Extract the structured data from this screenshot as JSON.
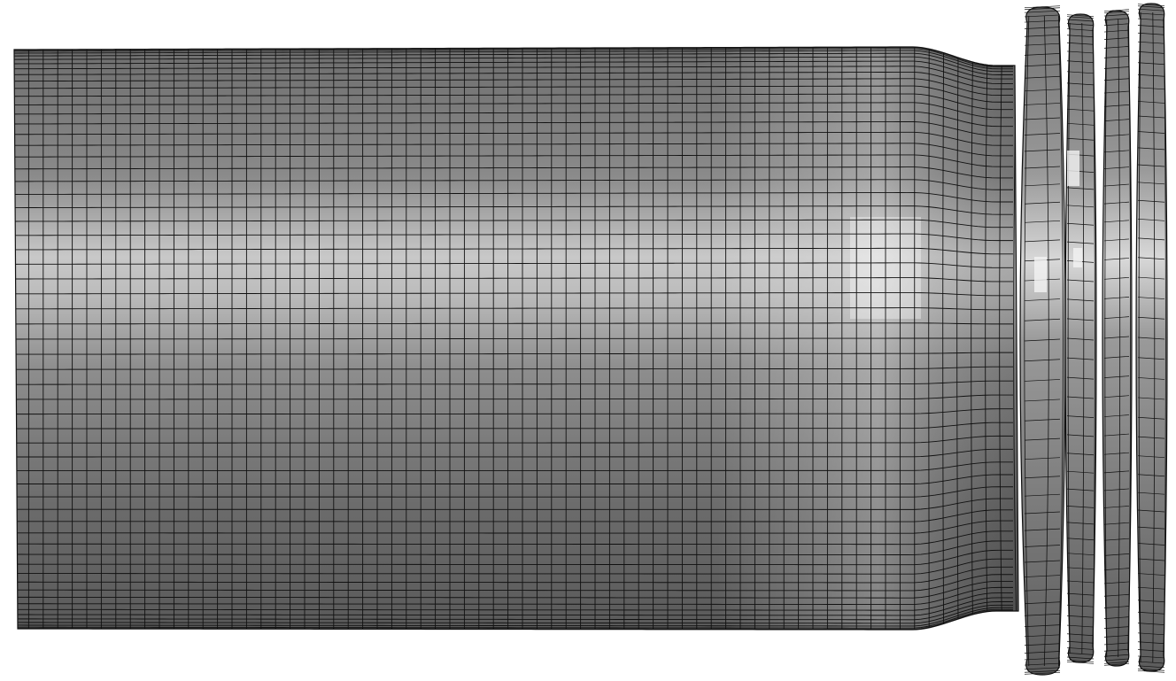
{
  "scene": {
    "description_name": "fe-mesh-tube-with-folds",
    "background_color": "#ffffff",
    "mesh_line_color": "#111111",
    "base_gray": "#828282",
    "highlight_gray": "#e6e6e6",
    "shadow_gray": "#5e5e5e",
    "fold_count": 4
  }
}
